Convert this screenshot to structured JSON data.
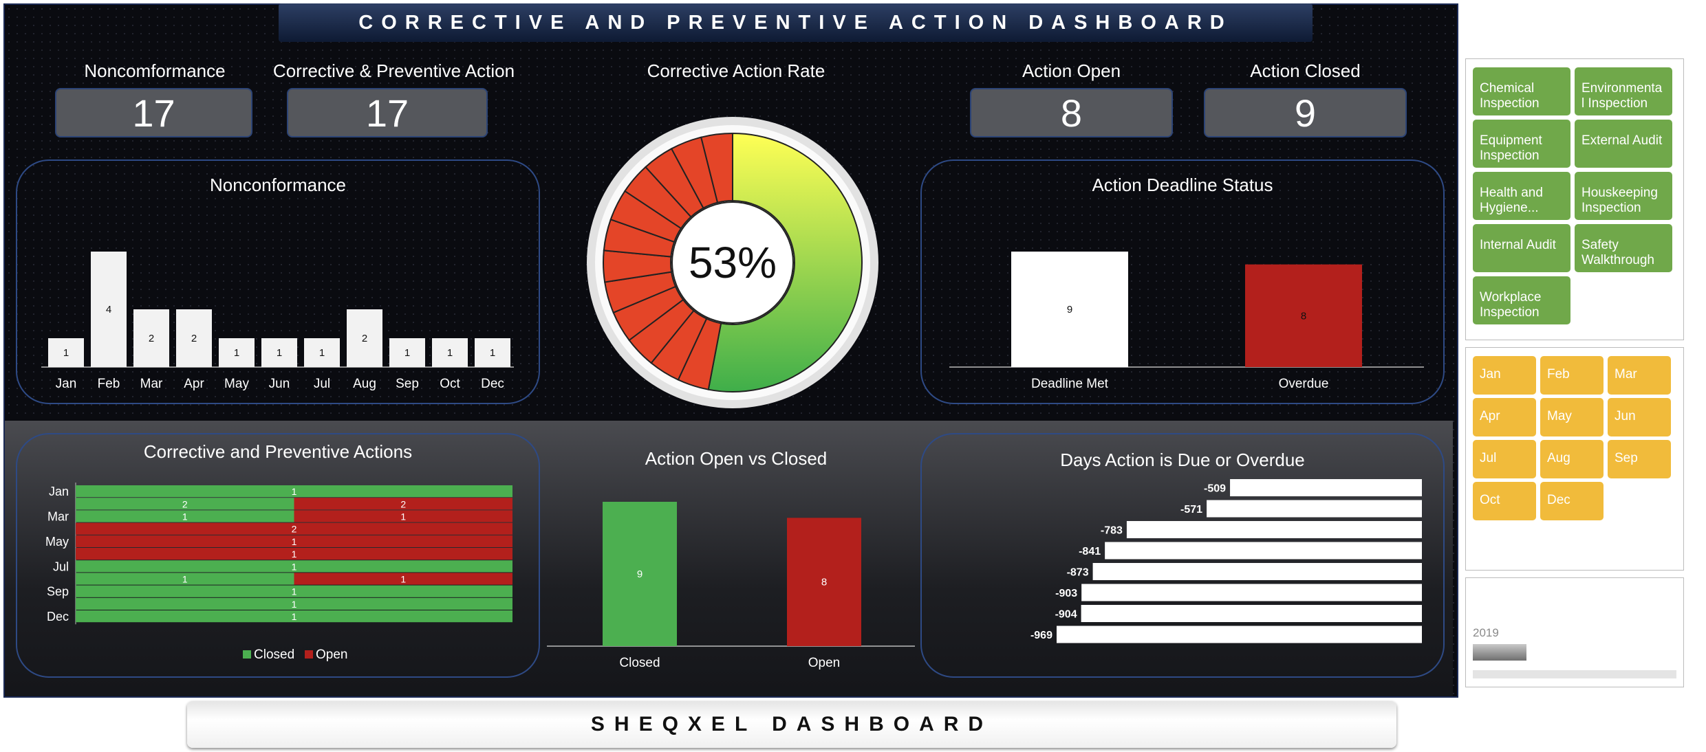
{
  "title": "CORRECTIVE AND PREVENTIVE ACTION DASHBOARD",
  "footer": "SHEQXEL DASHBOARD",
  "kpis": {
    "nonconformance": {
      "label": "Noncomformance",
      "value": "17"
    },
    "capa": {
      "label": "Corrective & Preventive Action",
      "value": "17"
    },
    "rate": {
      "label": "Corrective Action Rate"
    },
    "open": {
      "label": "Action Open",
      "value": "8"
    },
    "closed": {
      "label": "Action Closed",
      "value": "9"
    }
  },
  "colors": {
    "green": "#4caf50",
    "red": "#b3201c",
    "white": "#ffffff",
    "bar_gray": "#f2f2f2",
    "slicer_green": "#70a84a",
    "slicer_yellow": "#f1bb3b"
  },
  "chart_data": [
    {
      "type": "bar",
      "title": "Nonconformance",
      "categories": [
        "Jan",
        "Feb",
        "Mar",
        "Apr",
        "May",
        "Jun",
        "Jul",
        "Aug",
        "Sep",
        "Oct",
        "Dec"
      ],
      "values": [
        1,
        4,
        2,
        2,
        1,
        1,
        1,
        2,
        1,
        1,
        1
      ],
      "ylim": [
        0,
        4
      ]
    },
    {
      "type": "gauge",
      "title": "Corrective Action Rate",
      "value": 53,
      "label": "53%"
    },
    {
      "type": "bar",
      "title": "Action Deadline Status",
      "categories": [
        "Deadline Met",
        "Overdue"
      ],
      "values": [
        9,
        8
      ],
      "ylim": [
        0,
        9
      ]
    },
    {
      "type": "bar",
      "orientation": "horizontal",
      "stacked": "percent",
      "title": "Corrective and Preventive Actions",
      "tick_labels": [
        "Jan",
        "Mar",
        "May",
        "Jul",
        "Sep",
        "Dec"
      ],
      "rows": [
        {
          "closed": 1,
          "open": 0
        },
        {
          "closed": 2,
          "open": 2
        },
        {
          "closed": 1,
          "open": 1
        },
        {
          "closed": 0,
          "open": 2
        },
        {
          "closed": 0,
          "open": 1
        },
        {
          "closed": 0,
          "open": 1
        },
        {
          "closed": 1,
          "open": 0
        },
        {
          "closed": 1,
          "open": 1
        },
        {
          "closed": 1,
          "open": 0
        },
        {
          "closed": 1,
          "open": 0
        },
        {
          "closed": 1,
          "open": 0
        }
      ],
      "series": [
        {
          "name": "Closed"
        },
        {
          "name": "Open"
        }
      ],
      "legend": "bottom"
    },
    {
      "type": "bar",
      "title": "Action Open vs Closed",
      "categories": [
        "Closed",
        "Open"
      ],
      "values": [
        9,
        8
      ],
      "ylim": [
        0,
        9
      ]
    },
    {
      "type": "bar",
      "orientation": "horizontal",
      "title": "Days Action is Due or Overdue",
      "values": [
        -509,
        -571,
        -783,
        -841,
        -873,
        -903,
        -904,
        -969
      ],
      "xlim": [
        -1000,
        0
      ]
    }
  ],
  "slicers": {
    "types": [
      "Chemical Inspection",
      "Environmenta l Inspection",
      "Equipment Inspection",
      "External Audit",
      "Health and Hygiene...",
      "Houskeeping Inspection",
      "Internal Audit",
      "Safety Walkthrough",
      "Workplace Inspection"
    ],
    "months": [
      "Jan",
      "Feb",
      "Mar",
      "Apr",
      "May",
      "Jun",
      "Jul",
      "Aug",
      "Sep",
      "Oct",
      "Dec"
    ],
    "year": {
      "label": "2019"
    }
  }
}
